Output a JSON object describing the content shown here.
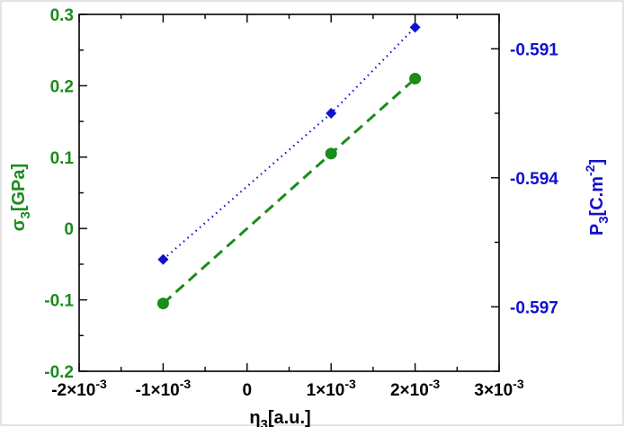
{
  "chart_data": {
    "type": "line",
    "x": [
      -0.001,
      0.001,
      0.002
    ],
    "xlabel": "η3[a.u.]",
    "xlim": [
      -0.002,
      0.003
    ],
    "x_ticks": [
      -0.002,
      -0.001,
      0,
      0.001,
      0.002,
      0.003
    ],
    "x_tick_labels": [
      "-2×10-3",
      "-1×10-3",
      "0",
      "1×10-3",
      "2×10-3",
      "3×10-3"
    ],
    "left_axis": {
      "label": "σ3[GPa]",
      "color": "#1a8c1a",
      "ylim": [
        -0.2,
        0.3
      ],
      "ticks": [
        -0.2,
        -0.1,
        0,
        0.1,
        0.2,
        0.3
      ],
      "tick_labels": [
        "-0.2",
        "-0.1",
        "0",
        "0.1",
        "0.2",
        "0.3"
      ]
    },
    "right_axis": {
      "label": "P3[C.m-2]",
      "color": "#1010d0",
      "ylim": [
        -0.5985,
        -0.5902
      ],
      "ticks": [
        -0.597,
        -0.594,
        -0.591
      ],
      "tick_labels": [
        "-0.597",
        "-0.594",
        "-0.591"
      ]
    },
    "series": [
      {
        "axis": "left",
        "marker": "circle",
        "line": "dashed",
        "color": "#1a8c1a",
        "values": [
          -0.105,
          0.105,
          0.21
        ]
      },
      {
        "axis": "right",
        "marker": "diamond",
        "line": "dotted",
        "color": "#1010d0",
        "values": [
          -0.5959,
          -0.5925,
          -0.5905
        ]
      }
    ],
    "grid": false
  }
}
